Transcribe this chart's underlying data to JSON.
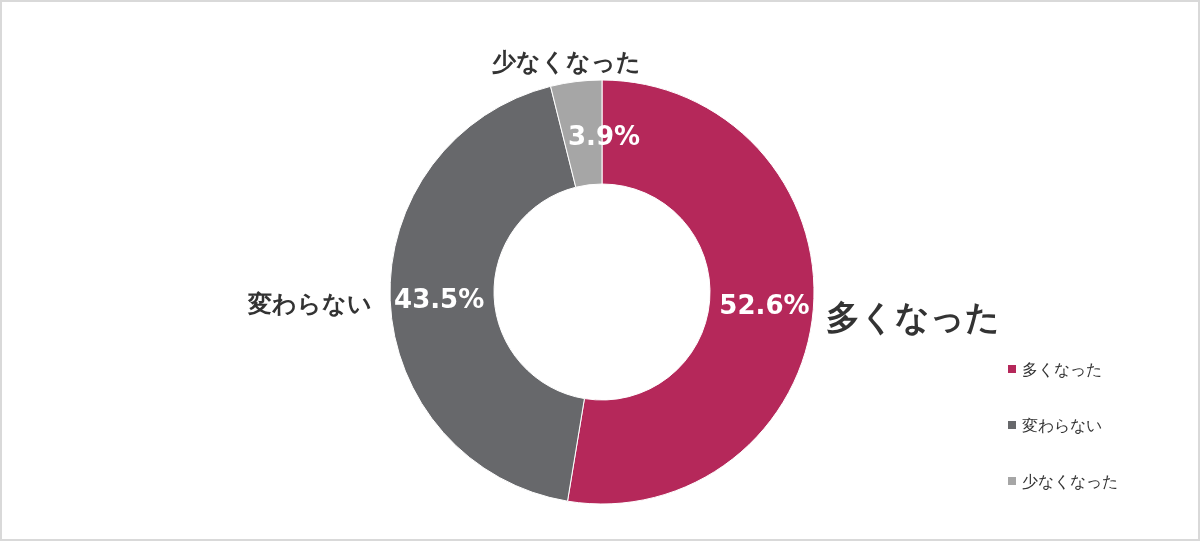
{
  "chart_data": {
    "type": "donut",
    "categories": [
      "多くなった",
      "変わらない",
      "少なくなった"
    ],
    "values": [
      52.6,
      43.5,
      3.9
    ],
    "colors": [
      "#b5285a",
      "#67686b",
      "#a6a6a6"
    ],
    "value_labels": [
      "52.6%",
      "43.5%",
      "3.9%"
    ],
    "legend": "bottom right"
  }
}
